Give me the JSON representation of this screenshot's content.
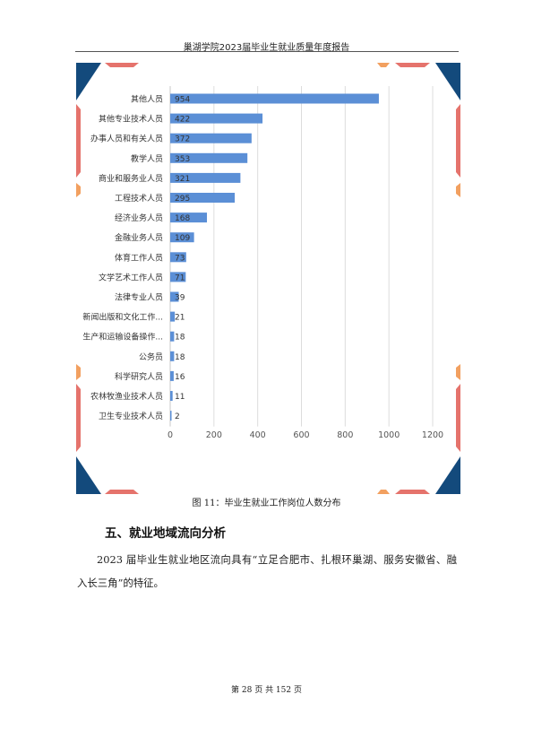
{
  "header": {
    "title": "巢湖学院2023届毕业生就业质量年度报告"
  },
  "chart_data": {
    "type": "bar",
    "orientation": "horizontal",
    "categories": [
      "其他人员",
      "其他专业技术人员",
      "办事人员和有关人员",
      "教学人员",
      "商业和服务业人员",
      "工程技术人员",
      "经济业务人员",
      "金融业务人员",
      "体育工作人员",
      "文学艺术工作人员",
      "法律专业人员",
      "新闻出版和文化工作...",
      "生产和运输设备操作...",
      "公务员",
      "科学研究人员",
      "农林牧渔业技术人员",
      "卫生专业技术人员"
    ],
    "values": [
      954,
      422,
      372,
      353,
      321,
      295,
      168,
      109,
      73,
      71,
      39,
      21,
      18,
      18,
      16,
      11,
      2
    ],
    "xlim": [
      0,
      1200
    ],
    "xticks": [
      0,
      200,
      400,
      600,
      800,
      1000,
      1200
    ],
    "grid": true,
    "bar_color": "#5b8fd6",
    "title": "",
    "xlabel": "",
    "ylabel": ""
  },
  "figure": {
    "caption": "图 11：毕业生就业工作岗位人数分布"
  },
  "section": {
    "heading": "五、就业地域流向分析"
  },
  "body": {
    "paragraph": "2023 届毕业生就业地区流向具有“立足合肥市、扎根环巢湖、服务安徽省、融入长三角”的特征。"
  },
  "footer": {
    "page_text": "第 28 页 共 152 页"
  },
  "colors": {
    "navy": "#134a7c",
    "coral": "#e5736c",
    "orange": "#f2a060"
  }
}
